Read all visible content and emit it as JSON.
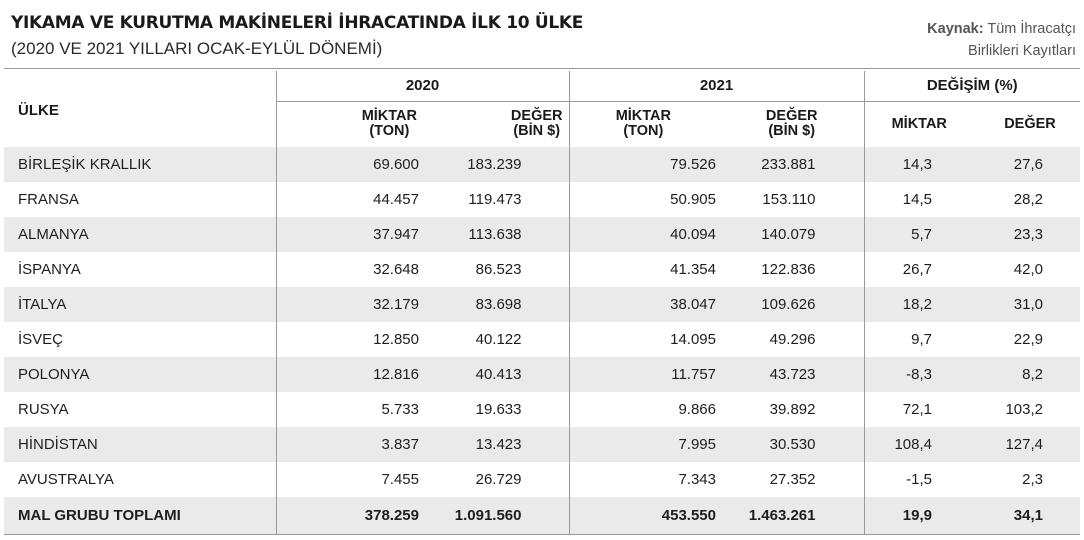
{
  "header": {
    "title": "YIKAMA VE KURUTMA MAKİNELERİ İHRACATINDA İLK 10 ÜLKE",
    "subtitle": "(2020 VE 2021 YILLARI OCAK-EYLÜL DÖNEMİ)",
    "source_label": "Kaynak:",
    "source_line1": "Tüm İhracatçı",
    "source_line2": "Birlikleri Kayıtları"
  },
  "columns": {
    "country": "ÜLKE",
    "year_2020": "2020",
    "year_2021": "2021",
    "change": "DEĞİŞİM (%)",
    "qty_line1": "MİKTAR",
    "qty_line2": "(TON)",
    "val_line1": "DEĞER",
    "val_line2": "(BİN $)",
    "chg_qty": "MİKTAR",
    "chg_val": "DEĞER"
  },
  "rows": [
    [
      "BİRLEŞİK KRALLIK",
      "69.600",
      "183.239",
      "79.526",
      "233.881",
      "14,3",
      "27,6"
    ],
    [
      "FRANSA",
      "44.457",
      "119.473",
      "50.905",
      "153.110",
      "14,5",
      "28,2"
    ],
    [
      "ALMANYA",
      "37.947",
      "113.638",
      "40.094",
      "140.079",
      "5,7",
      "23,3"
    ],
    [
      "İSPANYA",
      "32.648",
      "86.523",
      "41.354",
      "122.836",
      "26,7",
      "42,0"
    ],
    [
      "İTALYA",
      "32.179",
      "83.698",
      "38.047",
      "109.626",
      "18,2",
      "31,0"
    ],
    [
      "İSVEÇ",
      "12.850",
      "40.122",
      "14.095",
      "49.296",
      "9,7",
      "22,9"
    ],
    [
      "POLONYA",
      "12.816",
      "40.413",
      "11.757",
      "43.723",
      "-8,3",
      "8,2"
    ],
    [
      "RUSYA",
      "5.733",
      "19.633",
      "9.866",
      "39.892",
      "72,1",
      "103,2"
    ],
    [
      "HİNDİSTAN",
      "3.837",
      "13.423",
      "7.995",
      "30.530",
      "108,4",
      "127,4"
    ],
    [
      "AVUSTRALYA",
      "7.455",
      "26.729",
      "7.343",
      "27.352",
      "-1,5",
      "2,3"
    ]
  ],
  "total": [
    "MAL GRUBU TOPLAMI",
    "378.259",
    "1.091.560",
    "453.550",
    "1.463.261",
    "19,9",
    "34,1"
  ]
}
